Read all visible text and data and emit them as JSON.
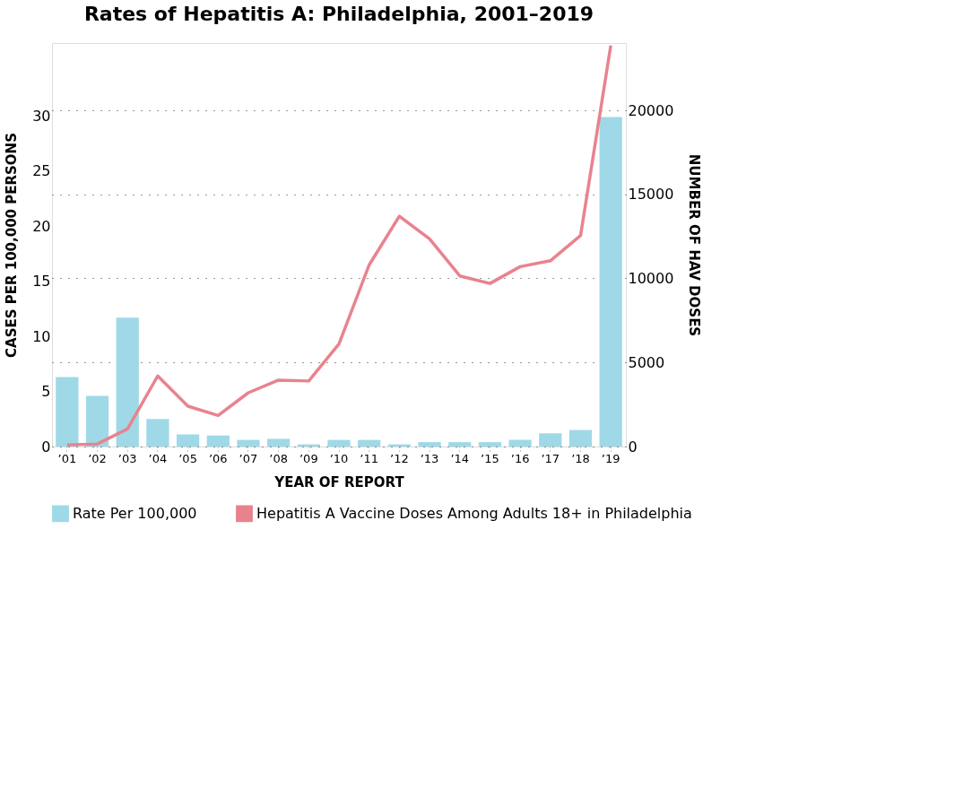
{
  "chart_data": {
    "type": "bar",
    "title": "Rates of Hepatitis A: Philadelphia, 2001–2019",
    "xlabel": "YEAR OF REPORT",
    "ylabel": "CASES PER 100,000 PERSONS",
    "y2label": "NUMBER OF HAV DOSES",
    "categories": [
      "’01",
      "’02",
      "’03",
      "’04",
      "’05",
      "’06",
      "’07",
      "’08",
      "’09",
      "’10",
      "’11",
      "’12",
      "’13",
      "’14",
      "’15",
      "’16",
      "’17",
      "’18",
      "’19"
    ],
    "series": [
      {
        "name": "Rate Per 100,000",
        "color": "#9fd9e8",
        "values": [
          6.3,
          4.6,
          11.7,
          2.5,
          1.1,
          1.0,
          0.6,
          0.7,
          0.2,
          0.6,
          0.6,
          0.2,
          0.4,
          0.4,
          0.4,
          0.6,
          1.2,
          1.5,
          29.9
        ]
      },
      {
        "name": "Hepatitis A Vaccine Doses Among Adults 18+ in Philadelphia",
        "type": "line",
        "axis": "y2",
        "color": "#e8838e",
        "values": [
          100,
          150,
          1050,
          4200,
          2400,
          1850,
          3200,
          3950,
          3900,
          6100,
          10800,
          13700,
          12350,
          10150,
          9700,
          10700,
          11050,
          12550,
          23850
        ]
      }
    ],
    "ylim": [
      0,
      36.6
    ],
    "yticks": [
      0,
      5,
      10,
      15,
      20,
      25,
      30
    ],
    "y2lim": [
      0,
      24000
    ],
    "y2ticks": [
      0,
      5000,
      10000,
      15000,
      20000
    ],
    "grid": "y2",
    "legend": "bottom",
    "line_style": "solid",
    "marker": "none"
  }
}
